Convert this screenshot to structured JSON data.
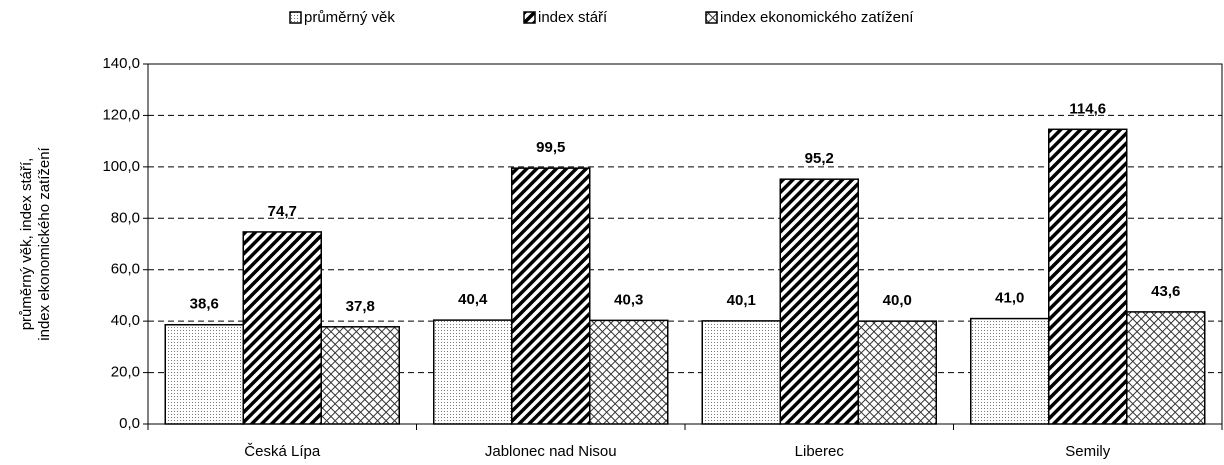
{
  "chart_data": {
    "type": "bar",
    "ylabel": [
      "průměrný věk, index stáří,",
      "index ekonomického zatížení"
    ],
    "categories": [
      "Česká Lípa",
      "Jablonec nad Nisou",
      "Liberec",
      "Semily"
    ],
    "series": [
      {
        "name": "průměrný věk",
        "pattern": "dots",
        "values": [
          38.6,
          40.4,
          40.1,
          41.0
        ],
        "value_labels": [
          "38,6",
          "40,4",
          "40,1",
          "41,0"
        ]
      },
      {
        "name": "index stáří",
        "pattern": "hatch",
        "values": [
          74.7,
          99.5,
          95.2,
          114.6
        ],
        "value_labels": [
          "74,7",
          "99,5",
          "95,2",
          "114,6"
        ]
      },
      {
        "name": "index ekonomického zatížení",
        "pattern": "cross",
        "values": [
          37.8,
          40.3,
          40.0,
          43.6
        ],
        "value_labels": [
          "37,8",
          "40,3",
          "40,0",
          "43,6"
        ]
      }
    ],
    "ylim": [
      0,
      140
    ],
    "yticks": [
      {
        "value": 0,
        "label": "0,0"
      },
      {
        "value": 20,
        "label": "20,0"
      },
      {
        "value": 40,
        "label": "40,0"
      },
      {
        "value": 60,
        "label": "60,0"
      },
      {
        "value": 80,
        "label": "80,0"
      },
      {
        "value": 100,
        "label": "100,0"
      },
      {
        "value": 120,
        "label": "120,0"
      },
      {
        "value": 140,
        "label": "140,0"
      }
    ],
    "grid": true,
    "legend": "top"
  }
}
